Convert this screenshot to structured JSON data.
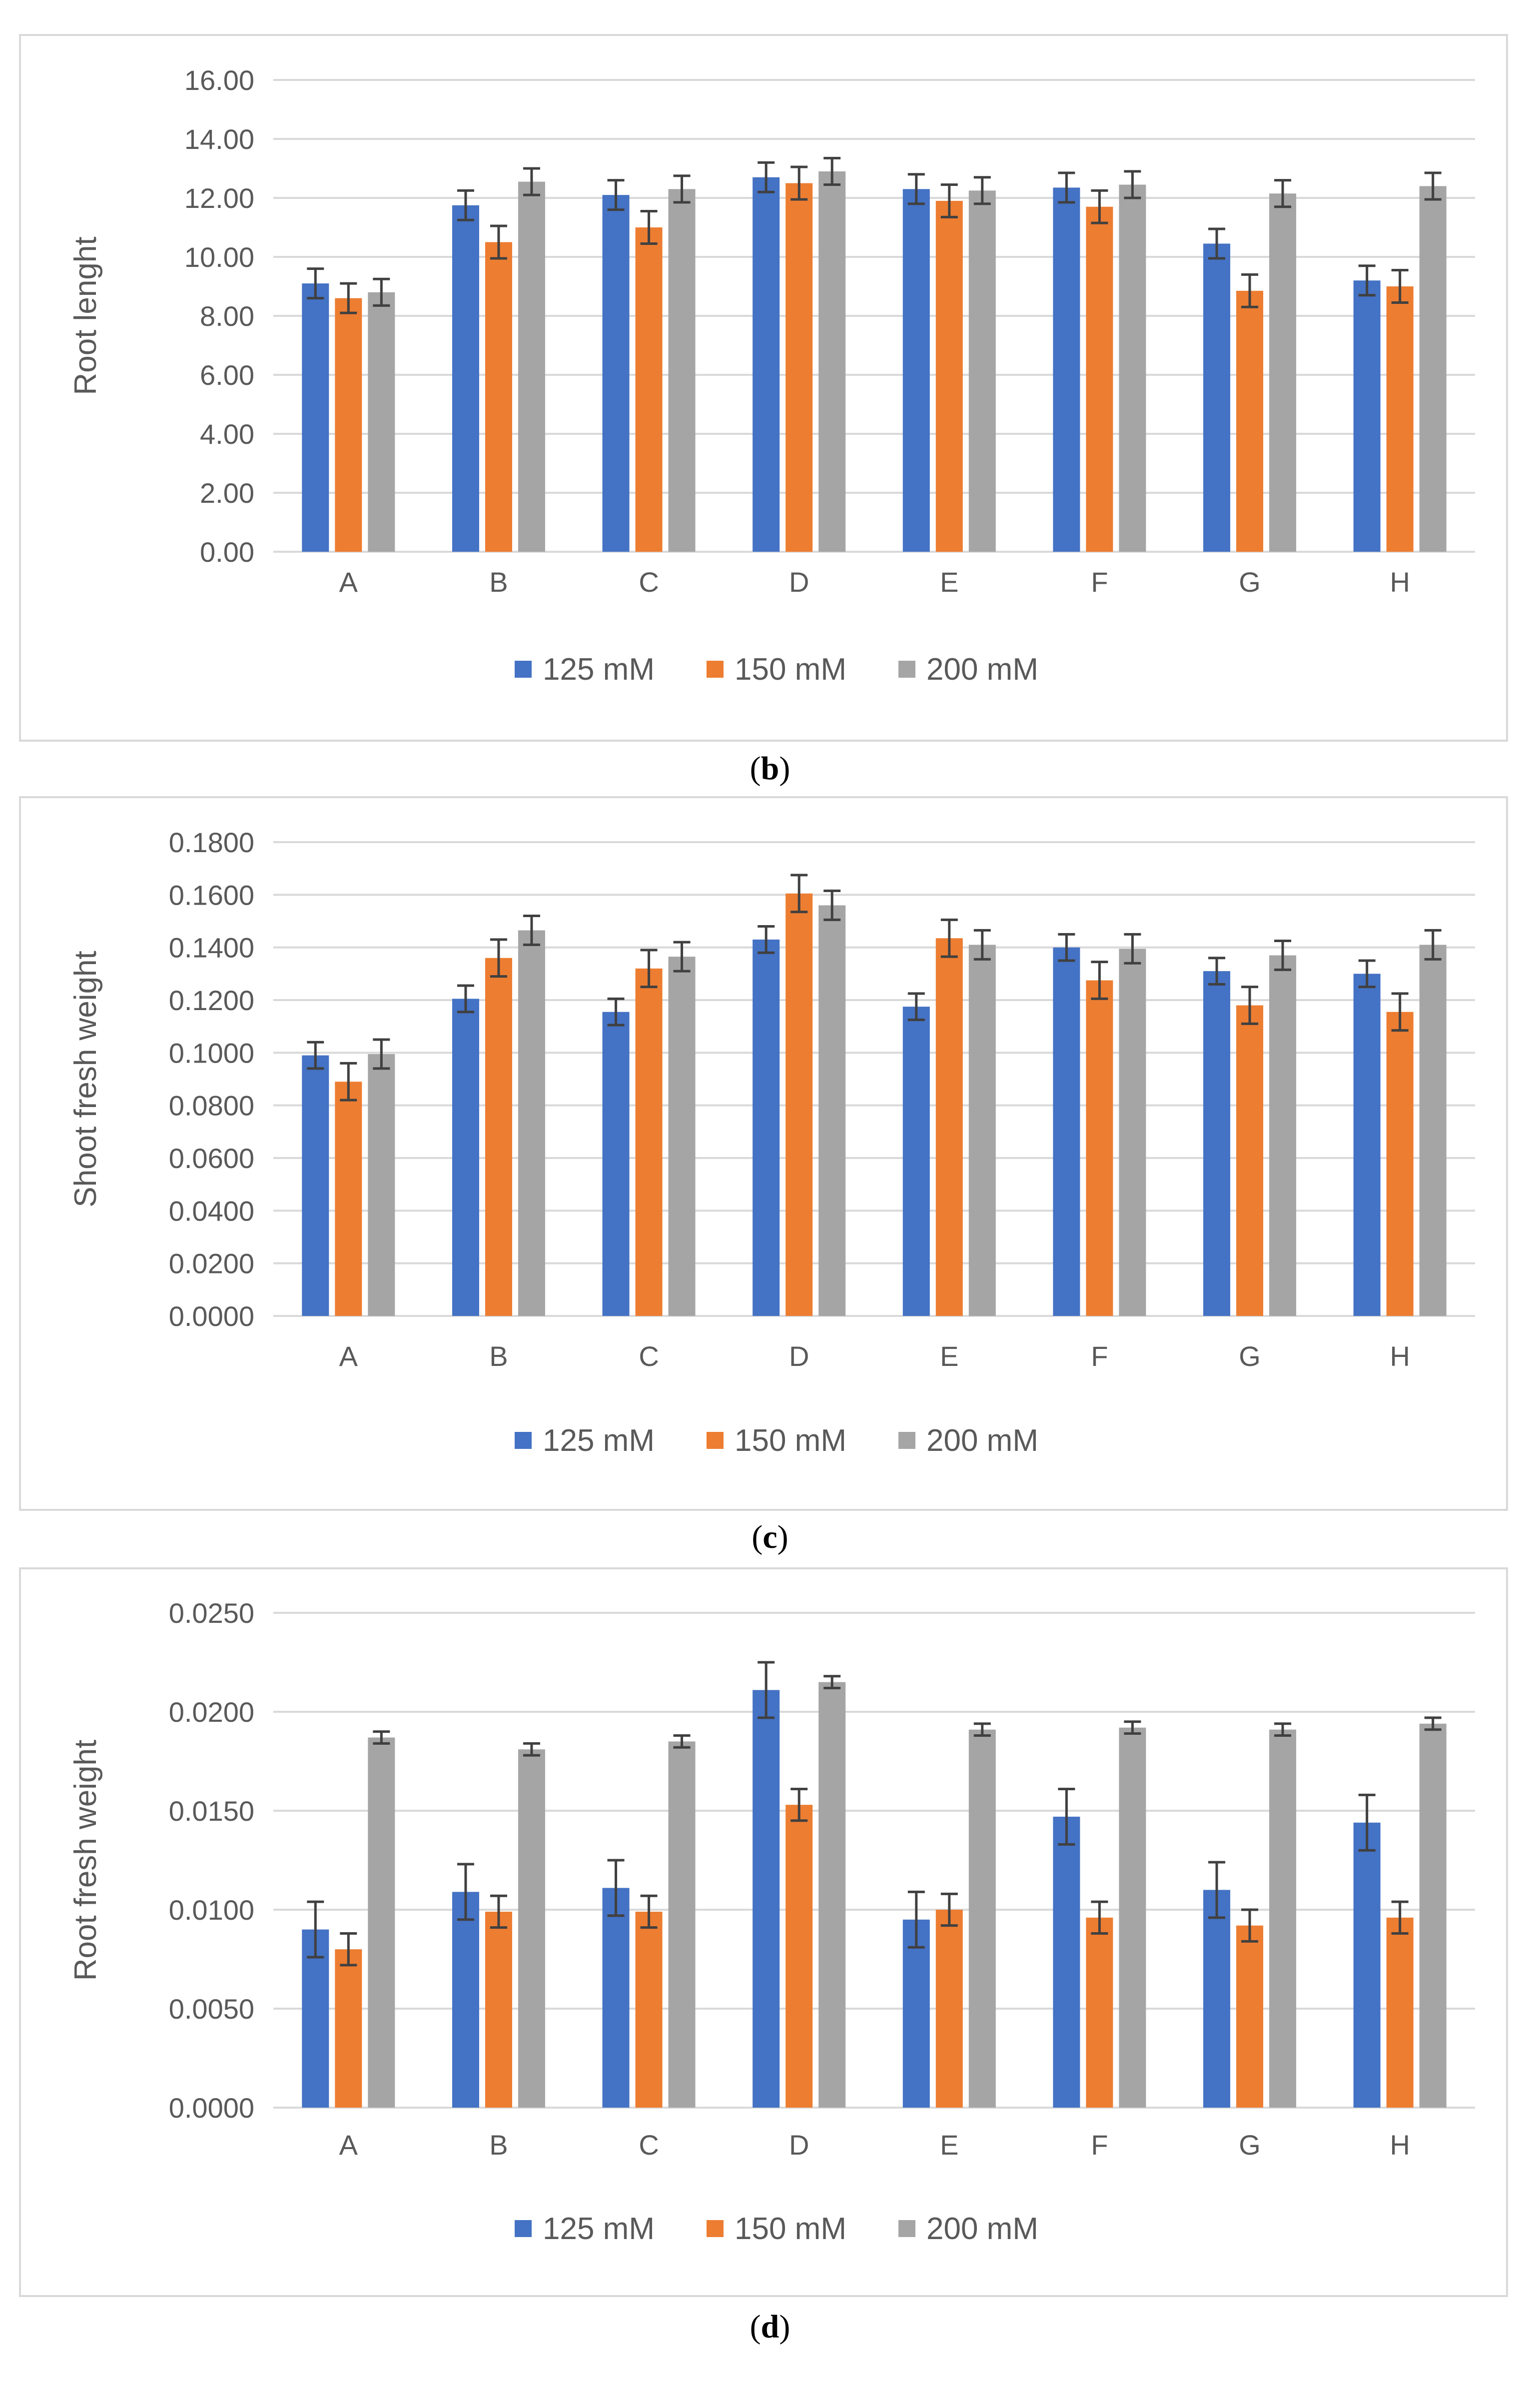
{
  "chart_data": [
    {
      "type": "bar",
      "caption": "b",
      "ylabel": "Root lenght",
      "categories": [
        "A",
        "B",
        "C",
        "D",
        "E",
        "F",
        "G",
        "H"
      ],
      "yticks": [
        "0.00",
        "2.00",
        "4.00",
        "6.00",
        "8.00",
        "10.00",
        "12.00",
        "14.00",
        "16.00"
      ],
      "ylim": [
        0,
        16
      ],
      "series": [
        {
          "name": "125 mM",
          "values": [
            9.1,
            11.75,
            12.1,
            12.7,
            12.3,
            12.35,
            10.45,
            9.2
          ],
          "errors": [
            0.5,
            0.5,
            0.5,
            0.5,
            0.5,
            0.5,
            0.5,
            0.5
          ]
        },
        {
          "name": "150 mM",
          "values": [
            8.6,
            10.5,
            11.0,
            12.5,
            11.9,
            11.7,
            8.85,
            9.0
          ],
          "errors": [
            0.5,
            0.55,
            0.55,
            0.55,
            0.55,
            0.55,
            0.55,
            0.55
          ]
        },
        {
          "name": "200 mM",
          "values": [
            8.8,
            12.55,
            12.3,
            12.9,
            12.25,
            12.45,
            12.15,
            12.4
          ],
          "errors": [
            0.45,
            0.45,
            0.45,
            0.45,
            0.45,
            0.45,
            0.45,
            0.45
          ]
        }
      ],
      "legend": "bottom"
    },
    {
      "type": "bar",
      "caption": "c",
      "ylabel": "Shoot fresh weight",
      "categories": [
        "A",
        "B",
        "C",
        "D",
        "E",
        "F",
        "G",
        "H"
      ],
      "yticks": [
        "0.0000",
        "0.0200",
        "0.0400",
        "0.0600",
        "0.0800",
        "0.1000",
        "0.1200",
        "0.1400",
        "0.1600",
        "0.1800"
      ],
      "ylim": [
        0,
        0.18
      ],
      "series": [
        {
          "name": "125 mM",
          "values": [
            0.099,
            0.1205,
            0.1155,
            0.143,
            0.1175,
            0.14,
            0.131,
            0.13
          ],
          "errors": [
            0.005,
            0.005,
            0.005,
            0.005,
            0.005,
            0.005,
            0.005,
            0.005
          ]
        },
        {
          "name": "150 mM",
          "values": [
            0.089,
            0.136,
            0.132,
            0.1605,
            0.1435,
            0.1275,
            0.118,
            0.1155
          ],
          "errors": [
            0.007,
            0.007,
            0.007,
            0.007,
            0.007,
            0.007,
            0.007,
            0.007
          ]
        },
        {
          "name": "200 mM",
          "values": [
            0.0995,
            0.1465,
            0.1365,
            0.156,
            0.141,
            0.1395,
            0.137,
            0.141
          ],
          "errors": [
            0.0055,
            0.0055,
            0.0055,
            0.0055,
            0.0055,
            0.0055,
            0.0055,
            0.0055
          ]
        }
      ],
      "legend": "bottom"
    },
    {
      "type": "bar",
      "caption": "d",
      "ylabel": "Root fresh weight",
      "categories": [
        "A",
        "B",
        "C",
        "D",
        "E",
        "F",
        "G",
        "H"
      ],
      "yticks": [
        "0.0000",
        "0.0050",
        "0.0100",
        "0.0150",
        "0.0200",
        "0.0250"
      ],
      "ylim": [
        0,
        0.025
      ],
      "series": [
        {
          "name": "125 mM",
          "values": [
            0.009,
            0.0109,
            0.0111,
            0.0211,
            0.0095,
            0.0147,
            0.011,
            0.0144
          ],
          "errors": [
            0.0014,
            0.0014,
            0.0014,
            0.0014,
            0.0014,
            0.0014,
            0.0014,
            0.0014
          ]
        },
        {
          "name": "150 mM",
          "values": [
            0.008,
            0.0099,
            0.0099,
            0.0153,
            0.01,
            0.0096,
            0.0092,
            0.0096
          ],
          "errors": [
            0.0008,
            0.0008,
            0.0008,
            0.0008,
            0.0008,
            0.0008,
            0.0008,
            0.0008
          ]
        },
        {
          "name": "200 mM",
          "values": [
            0.0187,
            0.0181,
            0.0185,
            0.0215,
            0.0191,
            0.0192,
            0.0191,
            0.0194
          ],
          "errors": [
            0.0003,
            0.0003,
            0.0003,
            0.0003,
            0.0003,
            0.0003,
            0.0003,
            0.0003
          ]
        }
      ],
      "legend": "bottom"
    }
  ],
  "colors": {
    "series": [
      "#4472c4",
      "#ed7d31",
      "#a5a5a5"
    ],
    "grid": "#d9d9d9",
    "text": "#595959",
    "error": "#404040"
  }
}
